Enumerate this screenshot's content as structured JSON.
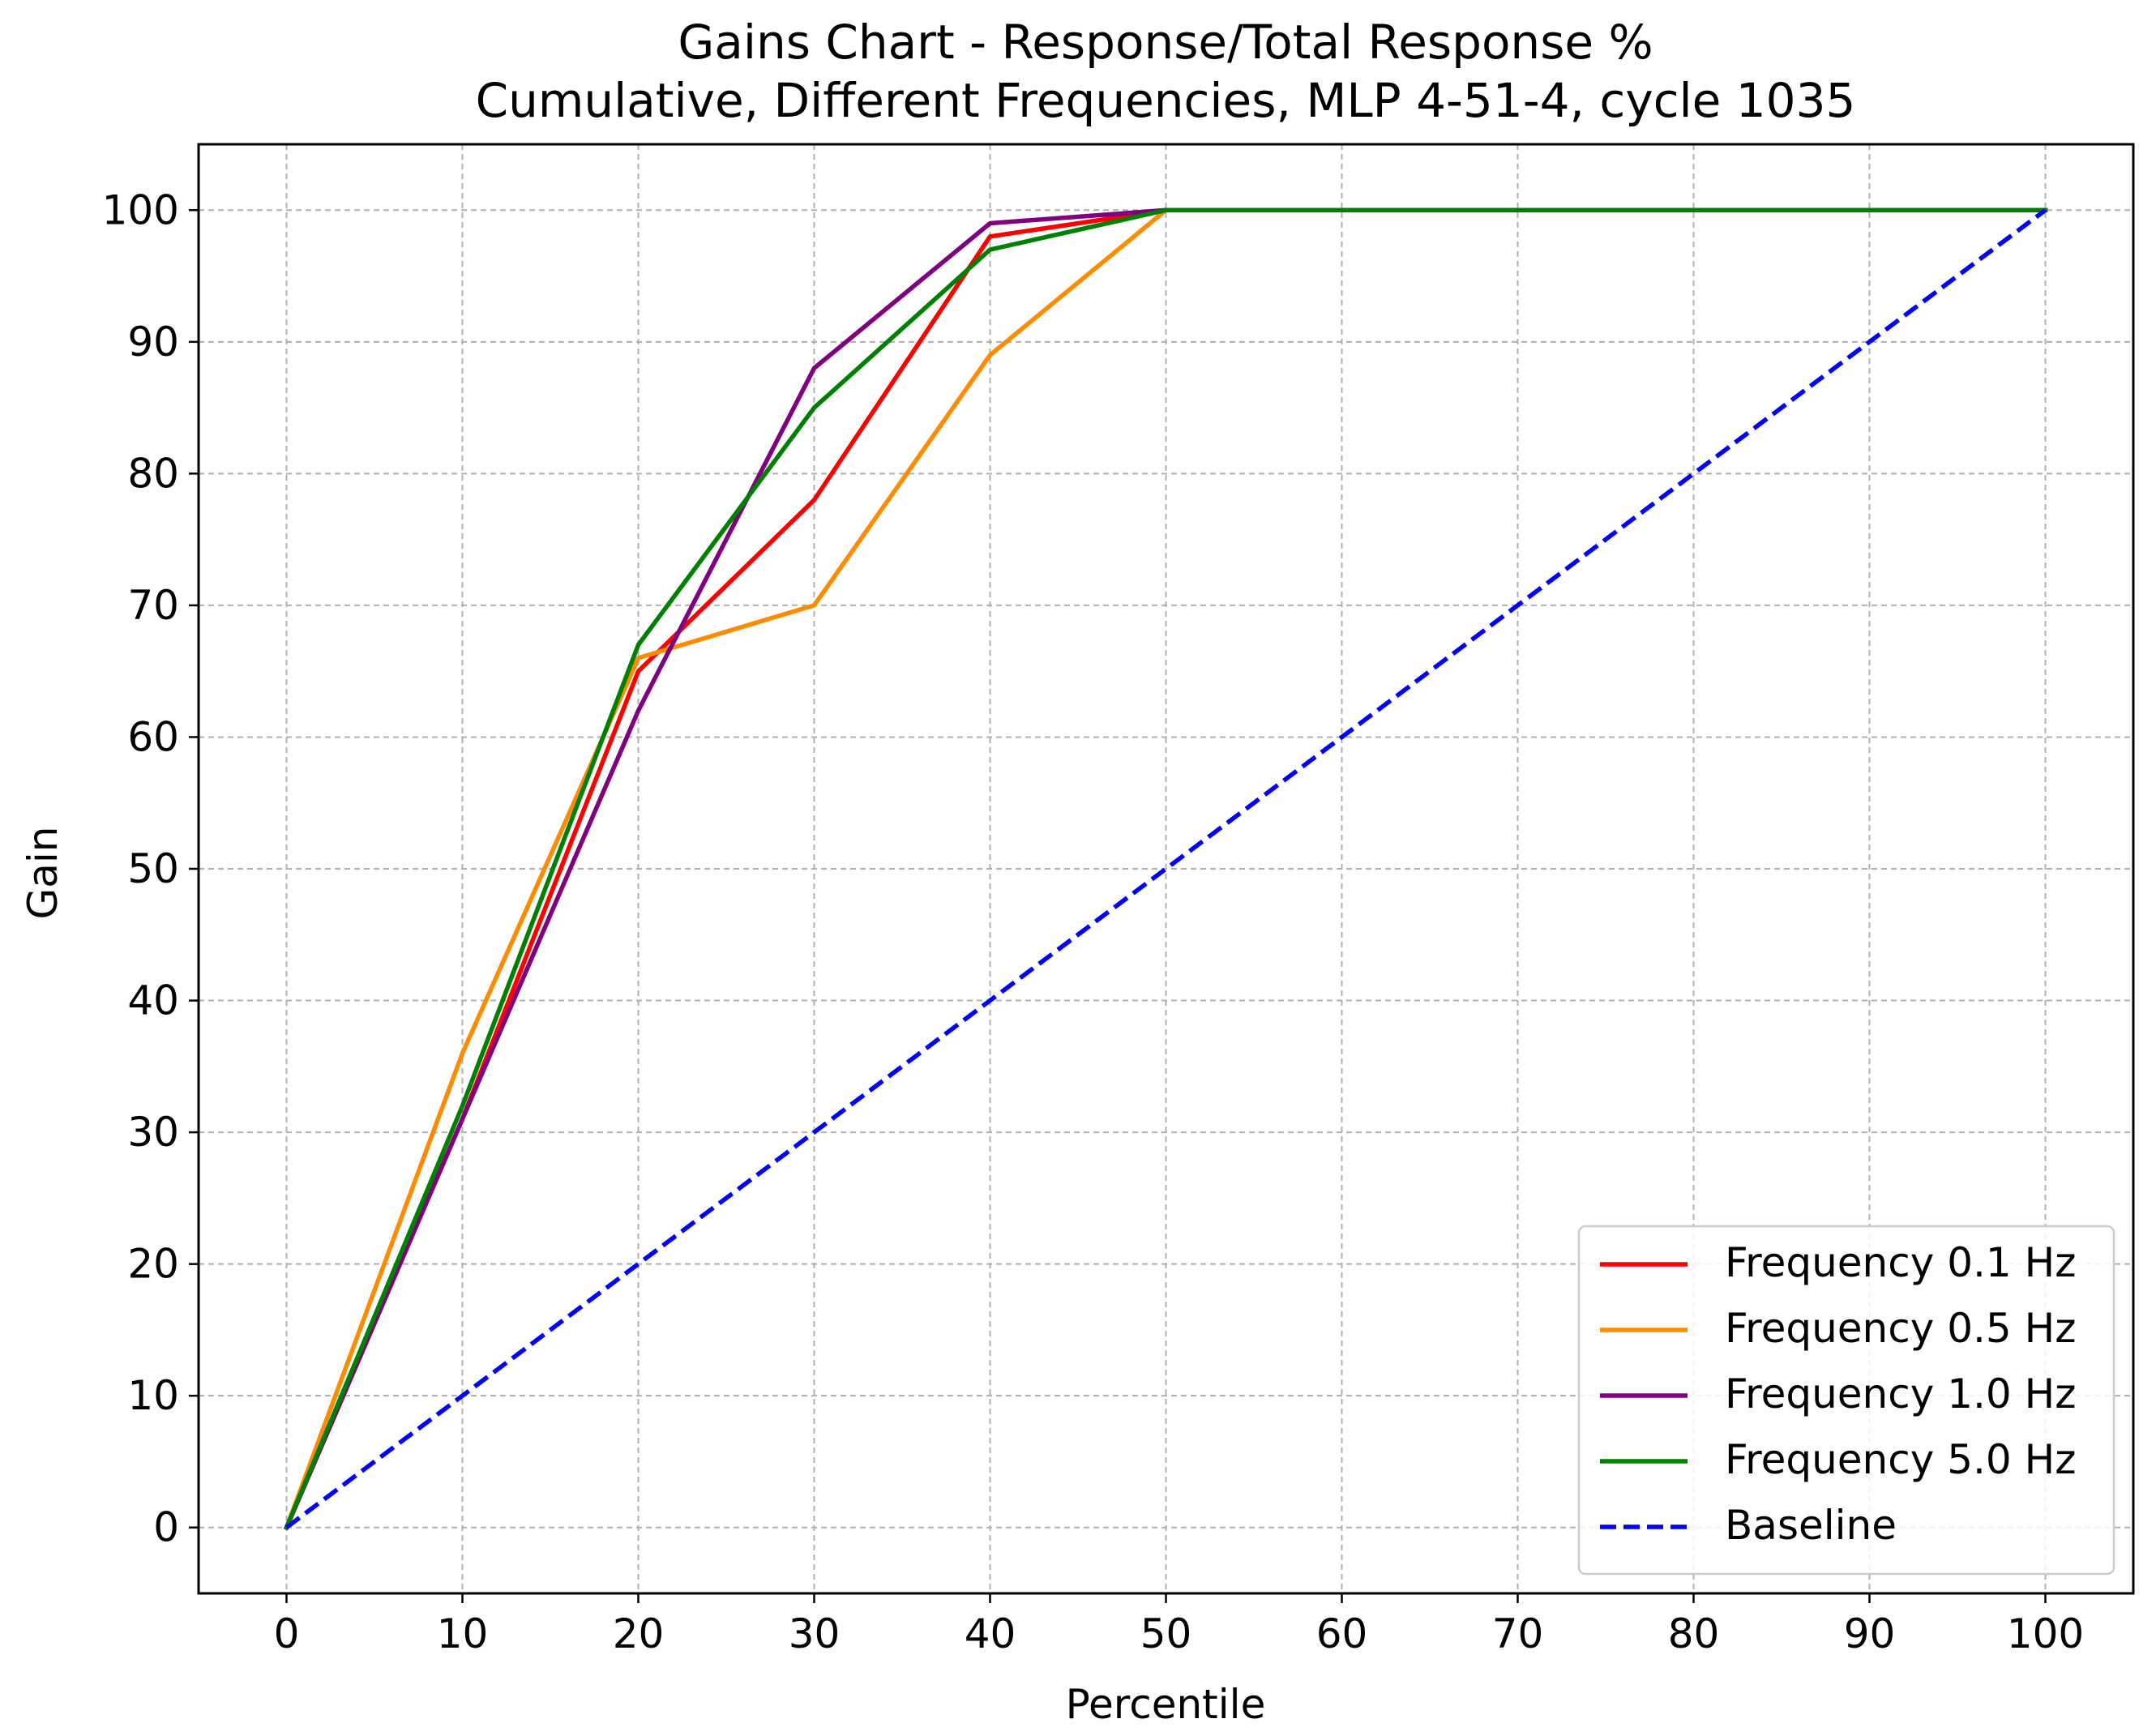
{
  "chart_data": {
    "type": "line",
    "title": "Gains Chart - Response/Total Response %",
    "subtitle": "Cumulative, Different Frequencies, MLP 4-51-4, cycle 1035",
    "xlabel": "Percentile",
    "ylabel": "Gain",
    "xlim": [
      -5,
      105
    ],
    "ylim": [
      -5,
      105
    ],
    "xticks": [
      0,
      10,
      20,
      30,
      40,
      50,
      60,
      70,
      80,
      90,
      100
    ],
    "yticks": [
      0,
      10,
      20,
      30,
      40,
      50,
      60,
      70,
      80,
      90,
      100
    ],
    "grid": true,
    "legend_position": "bottom-right",
    "x": [
      0,
      10,
      20,
      30,
      40,
      50,
      60,
      70,
      80,
      90,
      100
    ],
    "series": [
      {
        "name": "Frequency 0.1 Hz",
        "color": "#ff0000",
        "dash": "solid",
        "values": [
          0,
          31,
          65,
          78,
          98,
          100,
          100,
          100,
          100,
          100,
          100
        ]
      },
      {
        "name": "Frequency 0.5 Hz",
        "color": "#ff8c00",
        "dash": "solid",
        "values": [
          0,
          36,
          66,
          70,
          89,
          100,
          100,
          100,
          100,
          100,
          100
        ]
      },
      {
        "name": "Frequency 1.0 Hz",
        "color": "#800080",
        "dash": "solid",
        "values": [
          0,
          31,
          62,
          88,
          99,
          100,
          100,
          100,
          100,
          100,
          100
        ]
      },
      {
        "name": "Frequency 5.0 Hz",
        "color": "#008000",
        "dash": "solid",
        "values": [
          0,
          32,
          67,
          85,
          97,
          100,
          100,
          100,
          100,
          100,
          100
        ]
      },
      {
        "name": "Baseline",
        "color": "#0000ff",
        "dash": "dashed",
        "values": [
          0,
          10,
          20,
          30,
          40,
          50,
          60,
          70,
          80,
          90,
          100
        ]
      }
    ]
  }
}
